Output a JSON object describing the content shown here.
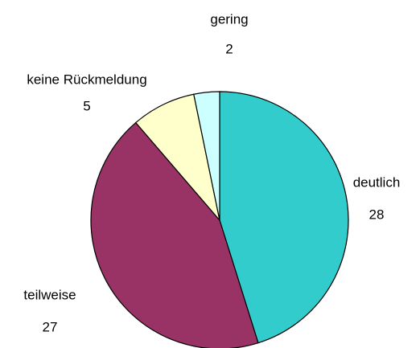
{
  "chart_data": {
    "type": "pie",
    "categories": [
      "deutlich",
      "teilweise",
      "keine Rückmeldung",
      "gering"
    ],
    "values": [
      28,
      27,
      5,
      2
    ],
    "colors": [
      "#33cccc",
      "#993366",
      "#ffffcc",
      "#ccffff"
    ]
  }
}
